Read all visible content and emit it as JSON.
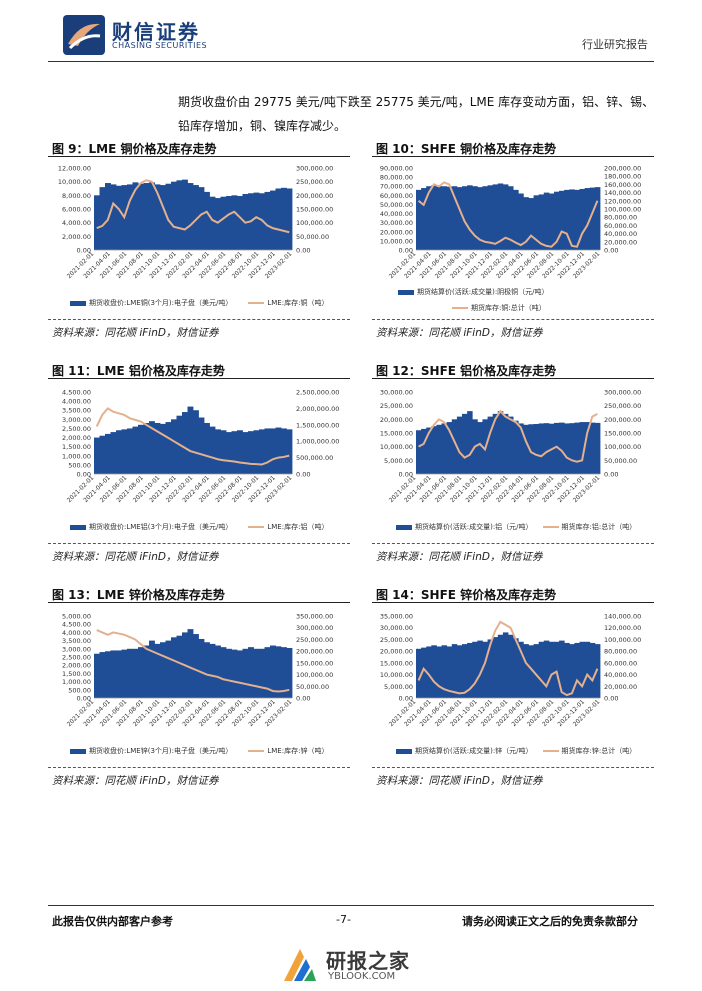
{
  "header": {
    "brand_cn": "财信证券",
    "brand_en": "CHASING SECURITIES",
    "doc_type": "行业研究报告"
  },
  "intro_text": "期货收盘价由 29775 美元/吨下跌至 25775 美元/吨，LME 库存变动方面，铝、锌、锡、铅库存增加，铜、镍库存减少。",
  "source_text": "资料来源：同花顺 iFinD，财信证券",
  "dates": [
    "2021-02-01",
    "2021-04-01",
    "2021-06-01",
    "2021-08-01",
    "2021-10-01",
    "2021-12-01",
    "2022-02-01",
    "2022-04-01",
    "2022-06-01",
    "2022-08-01",
    "2022-10-01",
    "2022-12-01",
    "2023-02-01"
  ],
  "figures": [
    {
      "title": "图 9：LME 铜价格及库存走势",
      "legend_bar": "期货收盘价:LME铜(3个月):电子盘（美元/吨）",
      "legend_line": "LME:库存:铜（吨）",
      "chart_data": {
        "type": "bar+line",
        "left_axis": [
          "12,000.00",
          "10,000.00",
          "8,000.00",
          "6,000.00",
          "4,000.00",
          "2,000.00",
          "0.00"
        ],
        "right_axis": [
          "300,000.00",
          "250,000.00",
          "200,000.00",
          "150,000.00",
          "100,000.00",
          "50,000.00",
          "0.00"
        ],
        "left_max": 12000,
        "right_max": 300000,
        "bar": [
          8000,
          9200,
          9800,
          9600,
          9400,
          9500,
          9600,
          9900,
          9700,
          9800,
          9900,
          9600,
          9500,
          9700,
          10000,
          10200,
          10300,
          9800,
          9500,
          9200,
          8500,
          7800,
          7600,
          7800,
          7900,
          8000,
          7900,
          8200,
          8300,
          8400,
          8300,
          8500,
          8700,
          9000,
          9100,
          9000
        ],
        "line": [
          80000,
          88000,
          110000,
          170000,
          150000,
          120000,
          180000,
          220000,
          245000,
          255000,
          250000,
          210000,
          160000,
          110000,
          85000,
          80000,
          75000,
          90000,
          110000,
          130000,
          140000,
          110000,
          100000,
          115000,
          130000,
          140000,
          120000,
          100000,
          105000,
          120000,
          110000,
          90000,
          80000,
          75000,
          70000,
          65000
        ]
      }
    },
    {
      "title": "图 10：SHFE 铜价格及库存走势",
      "legend_bar": "期货结算价(活跃:成交量):阴极铜（元/吨）",
      "legend_line": "期货库存:铜:总计（吨）",
      "chart_data": {
        "type": "bar+line",
        "left_axis": [
          "90,000.00",
          "80,000.00",
          "70,000.00",
          "60,000.00",
          "50,000.00",
          "40,000.00",
          "30,000.00",
          "20,000.00",
          "10,000.00",
          "0.00"
        ],
        "right_axis": [
          "200,000.00",
          "180,000.00",
          "160,000.00",
          "140,000.00",
          "120,000.00",
          "100,000.00",
          "80,000.00",
          "60,000.00",
          "40,000.00",
          "20,000.00",
          "0.00"
        ],
        "left_max": 90000,
        "right_max": 200000,
        "bar": [
          66000,
          68000,
          70000,
          71000,
          70000,
          70000,
          69500,
          70000,
          69000,
          70000,
          71000,
          70000,
          69000,
          70000,
          71000,
          72000,
          73000,
          72000,
          70000,
          66000,
          62000,
          58000,
          57000,
          60000,
          61000,
          63000,
          62000,
          64000,
          65000,
          66000,
          66500,
          66000,
          67000,
          68000,
          68500,
          69000
        ],
        "line": [
          120000,
          110000,
          140000,
          160000,
          155000,
          165000,
          160000,
          130000,
          100000,
          70000,
          50000,
          35000,
          25000,
          20000,
          18000,
          15000,
          22000,
          30000,
          25000,
          18000,
          12000,
          20000,
          35000,
          25000,
          15000,
          10000,
          8000,
          20000,
          45000,
          40000,
          10000,
          8000,
          40000,
          60000,
          90000,
          120000
        ]
      }
    },
    {
      "title": "图 11：LME 铝价格及库存走势",
      "legend_bar": "期货收盘价:LME铝(3个月):电子盘（美元/吨）",
      "legend_line": "LME:库存:铝（吨）",
      "chart_data": {
        "type": "bar+line",
        "left_axis": [
          "4,500.00",
          "4,000.00",
          "3,500.00",
          "3,000.00",
          "2,500.00",
          "2,000.00",
          "1,500.00",
          "1,000.00",
          "500.00",
          "0.00"
        ],
        "right_axis": [
          "2,500,000.00",
          "2,000,000.00",
          "1,500,000.00",
          "1,000,000.00",
          "500,000.00",
          "0.00"
        ],
        "left_max": 4500,
        "right_max": 2500000,
        "bar": [
          2000,
          2100,
          2200,
          2300,
          2400,
          2450,
          2500,
          2600,
          2700,
          2800,
          2900,
          2800,
          2750,
          2850,
          3000,
          3200,
          3400,
          3700,
          3500,
          3100,
          2800,
          2600,
          2450,
          2400,
          2300,
          2350,
          2400,
          2300,
          2350,
          2400,
          2450,
          2500,
          2500,
          2550,
          2500,
          2450
        ],
        "line": [
          1450000,
          1800000,
          2000000,
          1900000,
          1850000,
          1800000,
          1700000,
          1650000,
          1600000,
          1500000,
          1400000,
          1300000,
          1200000,
          1100000,
          1000000,
          900000,
          800000,
          700000,
          650000,
          600000,
          550000,
          500000,
          450000,
          420000,
          400000,
          380000,
          350000,
          330000,
          310000,
          300000,
          290000,
          350000,
          450000,
          500000,
          520000,
          560000
        ]
      }
    },
    {
      "title": "图 12：SHFE 铝价格及库存走势",
      "legend_bar": "期货结算价(活跃:成交量):铝（元/吨）",
      "legend_line": "期货库存:铝:总计（吨）",
      "chart_data": {
        "type": "bar+line",
        "left_axis": [
          "30,000.00",
          "25,000.00",
          "20,000.00",
          "15,000.00",
          "10,000.00",
          "5,000.00",
          "0.00"
        ],
        "right_axis": [
          "300,000.00",
          "250,000.00",
          "200,000.00",
          "150,000.00",
          "100,000.00",
          "50,000.00",
          "0.00"
        ],
        "left_max": 30000,
        "right_max": 300000,
        "bar": [
          16000,
          16500,
          17000,
          17500,
          18000,
          18500,
          19000,
          20000,
          21000,
          22000,
          23000,
          20000,
          19000,
          20000,
          21000,
          22000,
          23000,
          22000,
          21000,
          19500,
          18500,
          18000,
          18200,
          18300,
          18500,
          18600,
          18400,
          18700,
          18800,
          18500,
          18600,
          18800,
          19000,
          19000,
          18800,
          18700
        ],
        "line": [
          100000,
          110000,
          150000,
          180000,
          200000,
          190000,
          160000,
          120000,
          80000,
          60000,
          70000,
          100000,
          110000,
          90000,
          150000,
          200000,
          230000,
          210000,
          200000,
          190000,
          170000,
          120000,
          80000,
          70000,
          65000,
          80000,
          90000,
          100000,
          85000,
          60000,
          50000,
          45000,
          50000,
          150000,
          210000,
          220000
        ]
      }
    },
    {
      "title": "图 13：LME 锌价格及库存走势",
      "legend_bar": "期货收盘价:LME锌(3个月):电子盘（美元/吨）",
      "legend_line": "LME:库存:锌（吨）",
      "chart_data": {
        "type": "bar+line",
        "left_axis": [
          "5,000.00",
          "4,500.00",
          "4,000.00",
          "3,500.00",
          "3,000.00",
          "2,500.00",
          "2,000.00",
          "1,500.00",
          "1,000.00",
          "500.00",
          "0.00"
        ],
        "right_axis": [
          "350,000.00",
          "300,000.00",
          "250,000.00",
          "200,000.00",
          "150,000.00",
          "100,000.00",
          "50,000.00",
          "0.00"
        ],
        "left_max": 5000,
        "right_max": 350000,
        "bar": [
          2700,
          2800,
          2850,
          2900,
          2900,
          2950,
          3000,
          3000,
          3100,
          3200,
          3500,
          3300,
          3400,
          3500,
          3700,
          3800,
          4000,
          4200,
          3900,
          3600,
          3400,
          3300,
          3200,
          3100,
          3000,
          2950,
          2900,
          3000,
          3100,
          3000,
          3000,
          3100,
          3200,
          3150,
          3100,
          3050
        ],
        "line": [
          290000,
          280000,
          270000,
          280000,
          275000,
          270000,
          260000,
          250000,
          230000,
          210000,
          200000,
          190000,
          180000,
          170000,
          160000,
          150000,
          140000,
          130000,
          120000,
          110000,
          100000,
          95000,
          90000,
          80000,
          75000,
          70000,
          65000,
          60000,
          55000,
          50000,
          45000,
          40000,
          30000,
          28000,
          30000,
          35000
        ]
      }
    },
    {
      "title": "图 14：SHFE 锌价格及库存走势",
      "legend_bar": "期货结算价(活跃:成交量):锌（元/吨）",
      "legend_line": "期货库存:锌:总计（吨）",
      "chart_data": {
        "type": "bar+line",
        "left_axis": [
          "35,000.00",
          "30,000.00",
          "25,000.00",
          "20,000.00",
          "15,000.00",
          "10,000.00",
          "5,000.00",
          "0.00"
        ],
        "right_axis": [
          "140,000.00",
          "120,000.00",
          "100,000.00",
          "80,000.00",
          "60,000.00",
          "40,000.00",
          "20,000.00",
          "0.00"
        ],
        "left_max": 35000,
        "right_max": 140000,
        "bar": [
          21000,
          21500,
          22000,
          22500,
          22000,
          22500,
          22000,
          23000,
          22500,
          23000,
          23500,
          24000,
          24500,
          24000,
          25000,
          26000,
          27000,
          28000,
          27000,
          25500,
          24000,
          23000,
          22500,
          23000,
          24000,
          24500,
          24000,
          24000,
          24500,
          23500,
          23000,
          23500,
          24000,
          24000,
          23500,
          23000
        ],
        "line": [
          30000,
          50000,
          40000,
          28000,
          20000,
          15000,
          12000,
          10000,
          8000,
          9000,
          15000,
          25000,
          40000,
          60000,
          90000,
          115000,
          130000,
          125000,
          120000,
          100000,
          80000,
          60000,
          50000,
          40000,
          30000,
          20000,
          40000,
          45000,
          10000,
          5000,
          8000,
          30000,
          20000,
          40000,
          30000,
          50000
        ]
      }
    }
  ],
  "footer": {
    "left": "此报告仅供内部客户参考",
    "center": "-7-",
    "right": "请务必阅读正文之后的免责条款部分"
  },
  "watermark": {
    "cn": "研报之家",
    "en": "YBLOOK.COM"
  }
}
